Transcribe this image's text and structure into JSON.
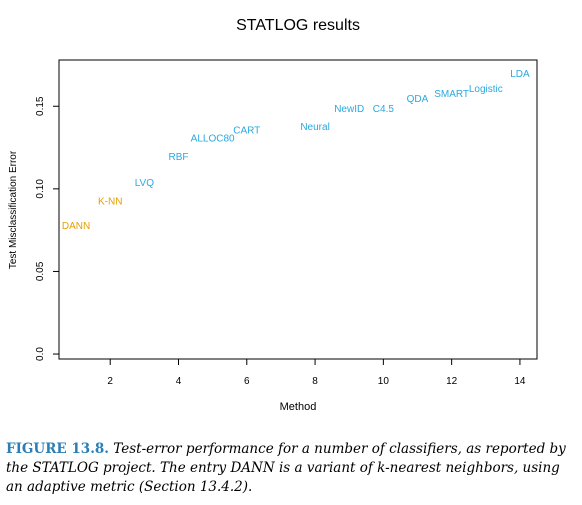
{
  "chart_data": {
    "type": "scatter",
    "title": "STATLOG results",
    "xlabel": "Method",
    "ylabel": "Test Misclassification Error",
    "xlim": [
      0.5,
      14.5
    ],
    "ylim": [
      -0.003,
      0.178
    ],
    "xticks": [
      2,
      4,
      6,
      8,
      10,
      12,
      14
    ],
    "yticks": [
      0.0,
      0.05,
      0.1,
      0.15
    ],
    "ytick_labels": [
      "0.0",
      "0.05",
      "0.10",
      "0.15"
    ],
    "grid": false,
    "legend": "none",
    "colors": {
      "highlight": "#E69F00",
      "default": "#29A9E0"
    },
    "points": [
      {
        "label": "DANN",
        "x": 1,
        "y": 0.078,
        "color": "#E69F00"
      },
      {
        "label": "K-NN",
        "x": 2,
        "y": 0.093,
        "color": "#E69F00"
      },
      {
        "label": "LVQ",
        "x": 3,
        "y": 0.104,
        "color": "#29A9E0"
      },
      {
        "label": "RBF",
        "x": 4,
        "y": 0.12,
        "color": "#29A9E0"
      },
      {
        "label": "ALLOC80",
        "x": 5,
        "y": 0.131,
        "color": "#29A9E0"
      },
      {
        "label": "CART",
        "x": 6,
        "y": 0.136,
        "color": "#29A9E0"
      },
      {
        "label": "Neural",
        "x": 8,
        "y": 0.138,
        "color": "#29A9E0"
      },
      {
        "label": "NewID",
        "x": 9,
        "y": 0.149,
        "color": "#29A9E0"
      },
      {
        "label": "C4.5",
        "x": 10,
        "y": 0.149,
        "color": "#29A9E0"
      },
      {
        "label": "QDA",
        "x": 11,
        "y": 0.155,
        "color": "#29A9E0"
      },
      {
        "label": "SMART",
        "x": 12,
        "y": 0.158,
        "color": "#29A9E0"
      },
      {
        "label": "Logistic",
        "x": 13,
        "y": 0.161,
        "color": "#29A9E0"
      },
      {
        "label": "LDA",
        "x": 14,
        "y": 0.17,
        "color": "#29A9E0"
      }
    ]
  },
  "caption": {
    "label": "FIGURE 13.8.",
    "text": "Test-error performance for a number of classifiers, as reported by the STATLOG project. The entry DANN is a variant of k-nearest neighbors, using an adaptive metric (Section 13.4.2)."
  }
}
